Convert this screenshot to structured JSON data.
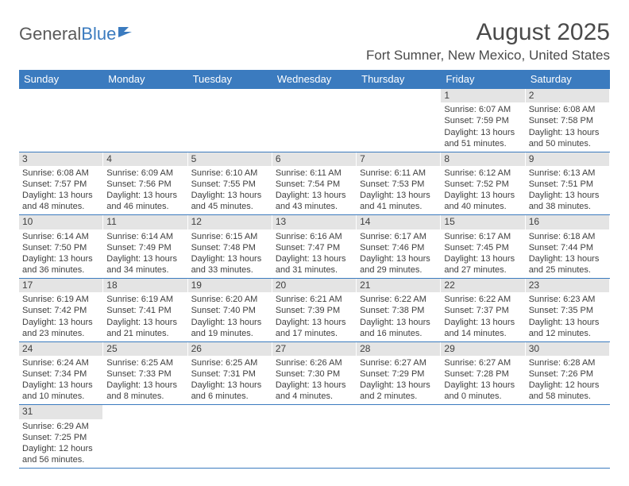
{
  "logo": {
    "text1": "General",
    "text2": "Blue"
  },
  "title": "August 2025",
  "location": "Fort Sumner, New Mexico, United States",
  "colors": {
    "header_bg": "#3b7bbf",
    "header_fg": "#ffffff",
    "daynum_bg": "#e4e4e4",
    "text": "#3f3f3f",
    "rule": "#3b7bbf"
  },
  "dow": [
    "Sunday",
    "Monday",
    "Tuesday",
    "Wednesday",
    "Thursday",
    "Friday",
    "Saturday"
  ],
  "weeks": [
    [
      null,
      null,
      null,
      null,
      null,
      {
        "n": "1",
        "sr": "6:07 AM",
        "ss": "7:59 PM",
        "dl": "13 hours and 51 minutes."
      },
      {
        "n": "2",
        "sr": "6:08 AM",
        "ss": "7:58 PM",
        "dl": "13 hours and 50 minutes."
      }
    ],
    [
      {
        "n": "3",
        "sr": "6:08 AM",
        "ss": "7:57 PM",
        "dl": "13 hours and 48 minutes."
      },
      {
        "n": "4",
        "sr": "6:09 AM",
        "ss": "7:56 PM",
        "dl": "13 hours and 46 minutes."
      },
      {
        "n": "5",
        "sr": "6:10 AM",
        "ss": "7:55 PM",
        "dl": "13 hours and 45 minutes."
      },
      {
        "n": "6",
        "sr": "6:11 AM",
        "ss": "7:54 PM",
        "dl": "13 hours and 43 minutes."
      },
      {
        "n": "7",
        "sr": "6:11 AM",
        "ss": "7:53 PM",
        "dl": "13 hours and 41 minutes."
      },
      {
        "n": "8",
        "sr": "6:12 AM",
        "ss": "7:52 PM",
        "dl": "13 hours and 40 minutes."
      },
      {
        "n": "9",
        "sr": "6:13 AM",
        "ss": "7:51 PM",
        "dl": "13 hours and 38 minutes."
      }
    ],
    [
      {
        "n": "10",
        "sr": "6:14 AM",
        "ss": "7:50 PM",
        "dl": "13 hours and 36 minutes."
      },
      {
        "n": "11",
        "sr": "6:14 AM",
        "ss": "7:49 PM",
        "dl": "13 hours and 34 minutes."
      },
      {
        "n": "12",
        "sr": "6:15 AM",
        "ss": "7:48 PM",
        "dl": "13 hours and 33 minutes."
      },
      {
        "n": "13",
        "sr": "6:16 AM",
        "ss": "7:47 PM",
        "dl": "13 hours and 31 minutes."
      },
      {
        "n": "14",
        "sr": "6:17 AM",
        "ss": "7:46 PM",
        "dl": "13 hours and 29 minutes."
      },
      {
        "n": "15",
        "sr": "6:17 AM",
        "ss": "7:45 PM",
        "dl": "13 hours and 27 minutes."
      },
      {
        "n": "16",
        "sr": "6:18 AM",
        "ss": "7:44 PM",
        "dl": "13 hours and 25 minutes."
      }
    ],
    [
      {
        "n": "17",
        "sr": "6:19 AM",
        "ss": "7:42 PM",
        "dl": "13 hours and 23 minutes."
      },
      {
        "n": "18",
        "sr": "6:19 AM",
        "ss": "7:41 PM",
        "dl": "13 hours and 21 minutes."
      },
      {
        "n": "19",
        "sr": "6:20 AM",
        "ss": "7:40 PM",
        "dl": "13 hours and 19 minutes."
      },
      {
        "n": "20",
        "sr": "6:21 AM",
        "ss": "7:39 PM",
        "dl": "13 hours and 17 minutes."
      },
      {
        "n": "21",
        "sr": "6:22 AM",
        "ss": "7:38 PM",
        "dl": "13 hours and 16 minutes."
      },
      {
        "n": "22",
        "sr": "6:22 AM",
        "ss": "7:37 PM",
        "dl": "13 hours and 14 minutes."
      },
      {
        "n": "23",
        "sr": "6:23 AM",
        "ss": "7:35 PM",
        "dl": "13 hours and 12 minutes."
      }
    ],
    [
      {
        "n": "24",
        "sr": "6:24 AM",
        "ss": "7:34 PM",
        "dl": "13 hours and 10 minutes."
      },
      {
        "n": "25",
        "sr": "6:25 AM",
        "ss": "7:33 PM",
        "dl": "13 hours and 8 minutes."
      },
      {
        "n": "26",
        "sr": "6:25 AM",
        "ss": "7:31 PM",
        "dl": "13 hours and 6 minutes."
      },
      {
        "n": "27",
        "sr": "6:26 AM",
        "ss": "7:30 PM",
        "dl": "13 hours and 4 minutes."
      },
      {
        "n": "28",
        "sr": "6:27 AM",
        "ss": "7:29 PM",
        "dl": "13 hours and 2 minutes."
      },
      {
        "n": "29",
        "sr": "6:27 AM",
        "ss": "7:28 PM",
        "dl": "13 hours and 0 minutes."
      },
      {
        "n": "30",
        "sr": "6:28 AM",
        "ss": "7:26 PM",
        "dl": "12 hours and 58 minutes."
      }
    ],
    [
      {
        "n": "31",
        "sr": "6:29 AM",
        "ss": "7:25 PM",
        "dl": "12 hours and 56 minutes."
      },
      null,
      null,
      null,
      null,
      null,
      null
    ]
  ],
  "labels": {
    "sunrise": "Sunrise:",
    "sunset": "Sunset:",
    "daylight": "Daylight:"
  }
}
